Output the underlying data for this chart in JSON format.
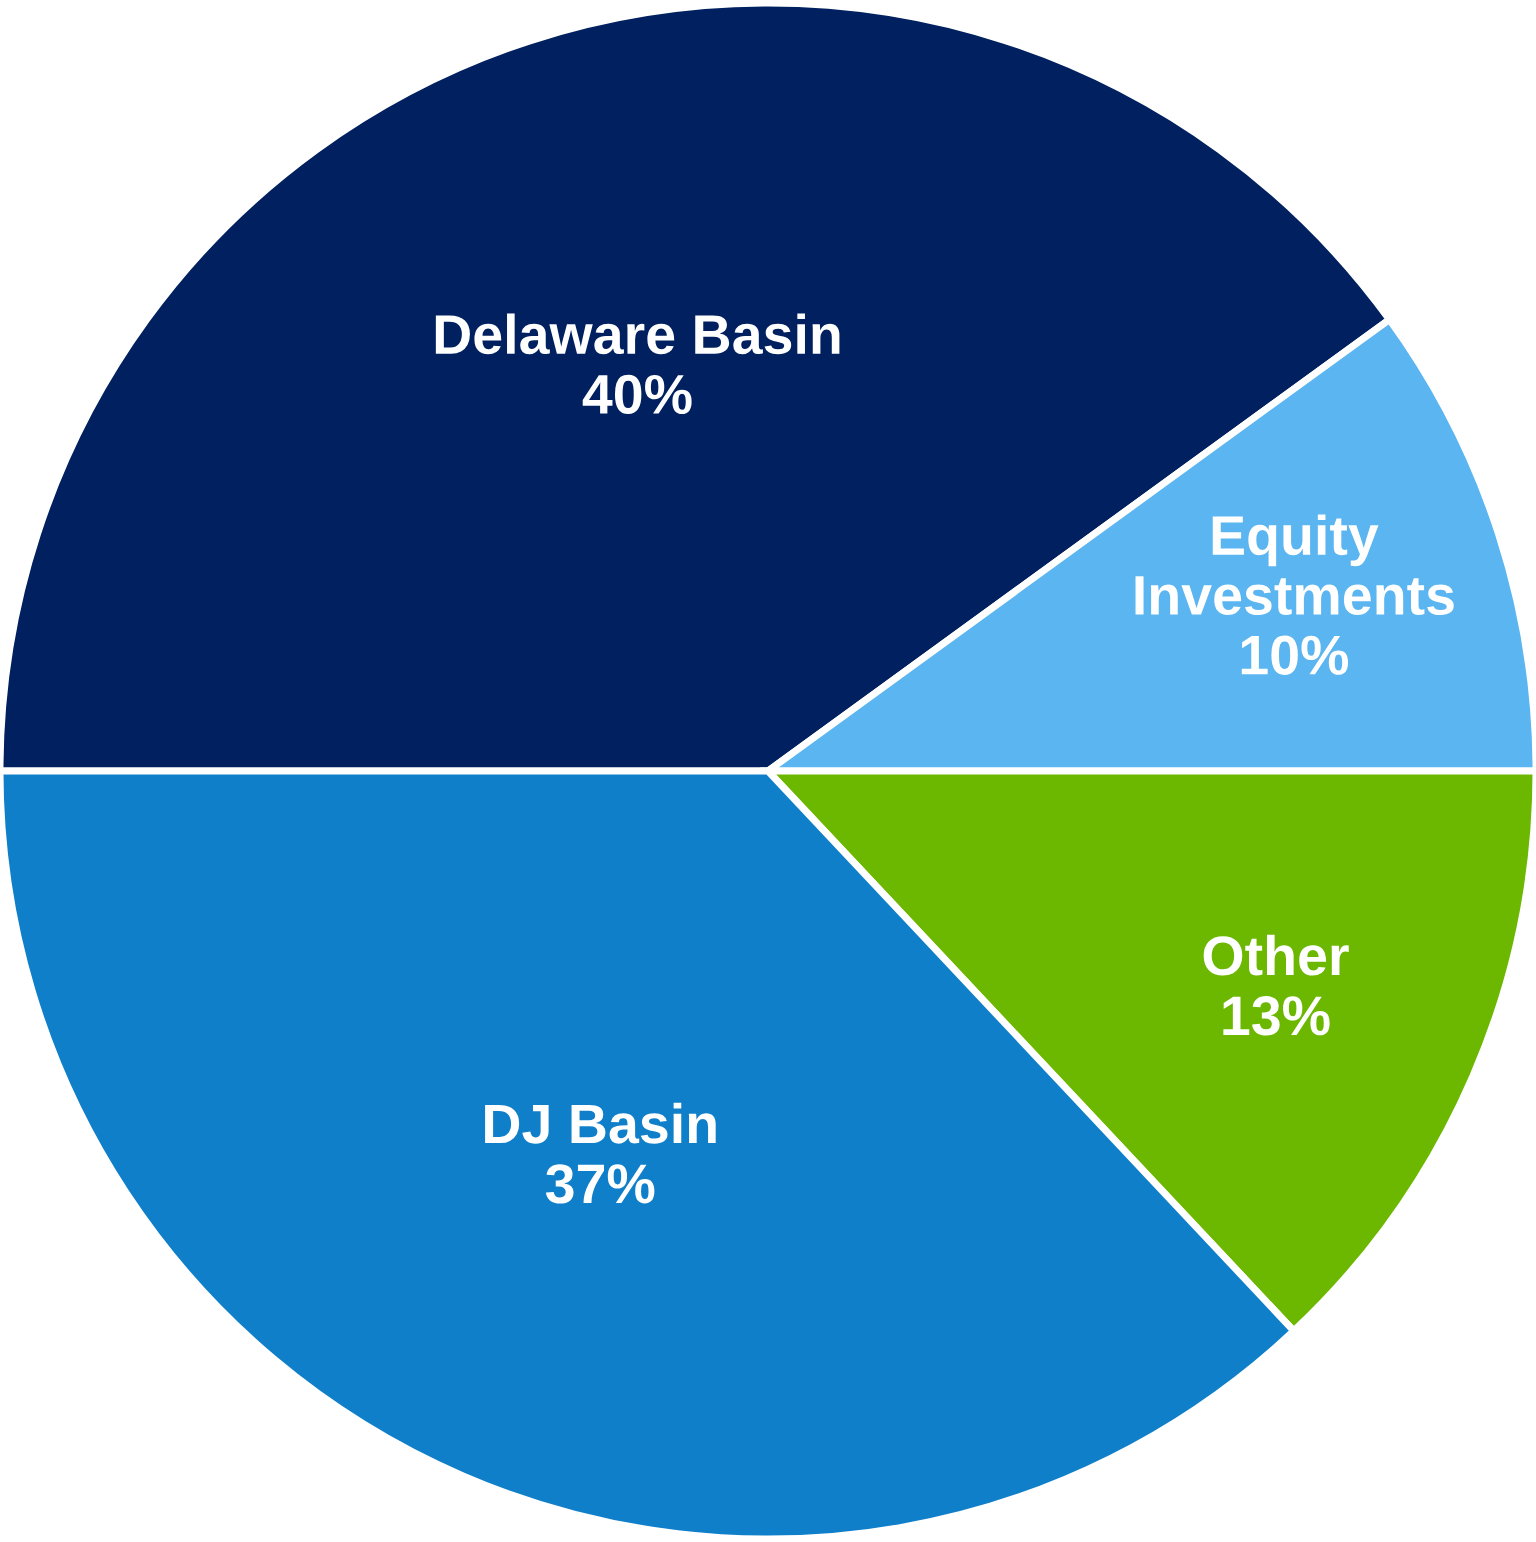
{
  "chart_data": {
    "type": "pie",
    "categories": [
      "Delaware Basin",
      "Equity Investments",
      "Other",
      "DJ Basin"
    ],
    "values": [
      40,
      10,
      13,
      37
    ],
    "value_labels": [
      "40%",
      "10%",
      "13%",
      "37%"
    ],
    "colors": [
      "#00205f",
      "#5bb5f0",
      "#6cb800",
      "#0f7fca"
    ]
  }
}
